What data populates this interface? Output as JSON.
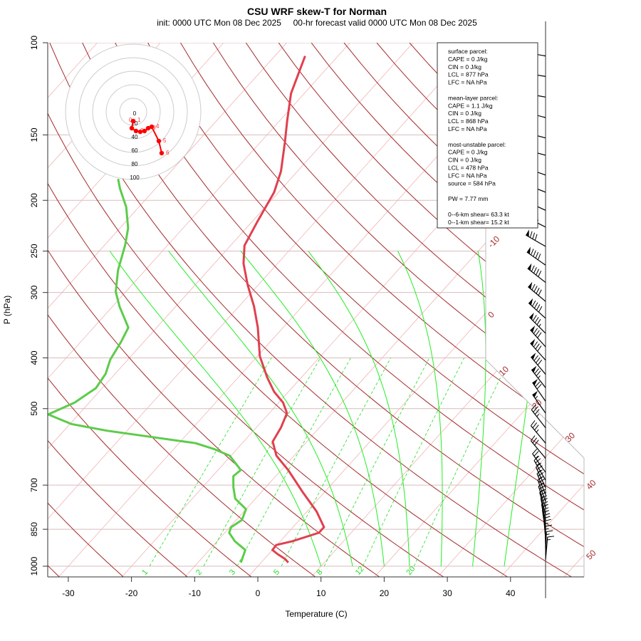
{
  "chart_data": {
    "type": "skew-t",
    "title": "CSU WRF skew-T for Norman",
    "subtitle": "init: 0000 UTC Mon 08 Dec 2025     00-hr forecast valid 0000 UTC Mon 08 Dec 2025",
    "xlabel": "Temperature (C)",
    "ylabel": "P (hPa)",
    "xticks": [
      -30,
      -20,
      -10,
      0,
      10,
      20,
      30,
      40
    ],
    "yticks": [
      100,
      150,
      200,
      250,
      300,
      400,
      500,
      700,
      850,
      1000
    ],
    "ylim": [
      1050,
      100
    ],
    "isotherm_labels": [
      -10,
      0,
      10,
      20,
      30,
      40,
      50
    ],
    "mixing_ratio_labels": [
      1,
      2,
      3,
      5,
      8,
      12,
      20
    ],
    "moist_adiabat_T1000": [
      10,
      15,
      20,
      24,
      29,
      34,
      39
    ],
    "temperature": {
      "color": "#e0404f",
      "p": [
        106,
        125,
        141,
        155,
        176,
        193,
        219,
        244,
        264,
        290,
        319,
        350,
        397,
        436,
        464,
        487,
        510,
        543,
        578,
        615,
        655,
        720,
        786,
        842,
        863,
        896,
        911,
        931,
        948,
        969,
        984
      ],
      "T": [
        -65.2,
        -62.1,
        -58.8,
        -56.1,
        -52.6,
        -50.7,
        -49.2,
        -47.8,
        -45.4,
        -41.7,
        -37.6,
        -34.0,
        -29.6,
        -25.4,
        -22.3,
        -19.3,
        -17.2,
        -16.1,
        -15.4,
        -12.8,
        -8.9,
        -3.6,
        1.5,
        4.9,
        4.9,
        1.9,
        -0.1,
        0.0,
        1.4,
        3.3,
        4.3
      ]
    },
    "dewpoint": {
      "color": "#5ccc4a",
      "p": [
        182,
        190,
        206,
        226,
        244,
        272,
        299,
        319,
        350,
        373,
        403,
        429,
        457,
        487,
        513,
        535,
        551,
        582,
        597,
        615,
        655,
        673,
        707,
        743,
        778,
        816,
        842,
        863,
        896,
        931,
        969,
        984
      ],
      "T": [
        -77.3,
        -75.6,
        -72.0,
        -68.7,
        -66.7,
        -64.3,
        -61.6,
        -58.9,
        -54.5,
        -53.6,
        -52.8,
        -51.5,
        -51.0,
        -52.3,
        -54.8,
        -49.8,
        -43.2,
        -27.4,
        -23.7,
        -20.2,
        -16.4,
        -16.7,
        -15.1,
        -13.2,
        -10.0,
        -9.1,
        -9.8,
        -9.3,
        -7.2,
        -4.3,
        -3.5,
        -3.2
      ]
    },
    "wind_barbs": [
      {
        "p": 106,
        "dir": 280,
        "kt": 75
      },
      {
        "p": 116,
        "dir": 280,
        "kt": 75
      },
      {
        "p": 127,
        "dir": 280,
        "kt": 75
      },
      {
        "p": 139,
        "dir": 285,
        "kt": 80
      },
      {
        "p": 152,
        "dir": 285,
        "kt": 80
      },
      {
        "p": 164,
        "dir": 285,
        "kt": 80
      },
      {
        "p": 179,
        "dir": 290,
        "kt": 85
      },
      {
        "p": 193,
        "dir": 292,
        "kt": 85
      },
      {
        "p": 209,
        "dir": 295,
        "kt": 85
      },
      {
        "p": 225,
        "dir": 297,
        "kt": 85
      },
      {
        "p": 245,
        "dir": 300,
        "kt": 80
      },
      {
        "p": 266,
        "dir": 305,
        "kt": 90
      },
      {
        "p": 287,
        "dir": 308,
        "kt": 90
      },
      {
        "p": 312,
        "dir": 310,
        "kt": 90
      },
      {
        "p": 336,
        "dir": 312,
        "kt": 90
      },
      {
        "p": 359,
        "dir": 315,
        "kt": 85
      },
      {
        "p": 381,
        "dir": 318,
        "kt": 80
      },
      {
        "p": 404,
        "dir": 318,
        "kt": 80
      },
      {
        "p": 430,
        "dir": 320,
        "kt": 80
      },
      {
        "p": 456,
        "dir": 322,
        "kt": 75
      },
      {
        "p": 484,
        "dir": 325,
        "kt": 70
      },
      {
        "p": 510,
        "dir": 325,
        "kt": 55
      },
      {
        "p": 544,
        "dir": 322,
        "kt": 35
      },
      {
        "p": 582,
        "dir": 320,
        "kt": 35
      },
      {
        "p": 622,
        "dir": 320,
        "kt": 30
      },
      {
        "p": 662,
        "dir": 325,
        "kt": 25
      },
      {
        "p": 685,
        "dir": 330,
        "kt": 25
      },
      {
        "p": 708,
        "dir": 335,
        "kt": 25
      },
      {
        "p": 730,
        "dir": 338,
        "kt": 25
      },
      {
        "p": 752,
        "dir": 340,
        "kt": 25
      },
      {
        "p": 774,
        "dir": 342,
        "kt": 25
      },
      {
        "p": 796,
        "dir": 345,
        "kt": 25
      },
      {
        "p": 818,
        "dir": 348,
        "kt": 20
      },
      {
        "p": 840,
        "dir": 350,
        "kt": 20
      },
      {
        "p": 862,
        "dir": 352,
        "kt": 20
      },
      {
        "p": 884,
        "dir": 355,
        "kt": 20
      },
      {
        "p": 906,
        "dir": 358,
        "kt": 15
      },
      {
        "p": 928,
        "dir": 0,
        "kt": 15
      },
      {
        "p": 950,
        "dir": 2,
        "kt": 15
      },
      {
        "p": 972,
        "dir": 5,
        "kt": 15
      }
    ],
    "hodograph": {
      "ring_labels": [
        0,
        20,
        40,
        60,
        80,
        100
      ],
      "points": [
        {
          "label": "0",
          "u": 0,
          "v": -13.7
        },
        {
          "label": "1",
          "u": 0,
          "v": -13.7
        },
        {
          "label": "",
          "u": -2.1,
          "v": -24.2
        },
        {
          "label": "2",
          "u": 4.2,
          "v": -28.4
        },
        {
          "label": "",
          "u": 10.5,
          "v": -29.5
        },
        {
          "label": "",
          "u": 16.8,
          "v": -28.4
        },
        {
          "label": "3",
          "u": 22.1,
          "v": -24.2
        },
        {
          "label": "4",
          "u": 27.4,
          "v": -22.1
        },
        {
          "label": "5",
          "u": 37.9,
          "v": -43.2
        },
        {
          "label": "6",
          "u": 42.1,
          "v": -61.1
        }
      ]
    }
  },
  "info_box": {
    "lines": [
      "surface parcel:",
      "CAPE = 0 J/kg",
      "CIN = 0 J/kg",
      "LCL = 877 hPa",
      "LFC = NA hPa",
      "",
      "mean-layer parcel:",
      "CAPE = 1.1 J/kg",
      "CIN = 0 J/kg",
      "LCL = 868 hPa",
      "LFC = NA hPa",
      "",
      "most-unstable parcel:",
      "CAPE = 0 J/kg",
      "CIN = 0 J/kg",
      "LCL = 478 hPa",
      "LFC = NA hPa",
      "source = 584 hPa",
      "",
      "PW =  7.77 mm",
      "",
      "0--6-km shear= 63.3 kt",
      "0--1-km shear= 15.2 kt"
    ]
  },
  "colors": {
    "dry_adiabat": "#a52a2a",
    "isotherm": "#f0b4b4",
    "moist": "#22ee22",
    "mixing": "#22dd22",
    "isobar": "#d9bcbc"
  }
}
